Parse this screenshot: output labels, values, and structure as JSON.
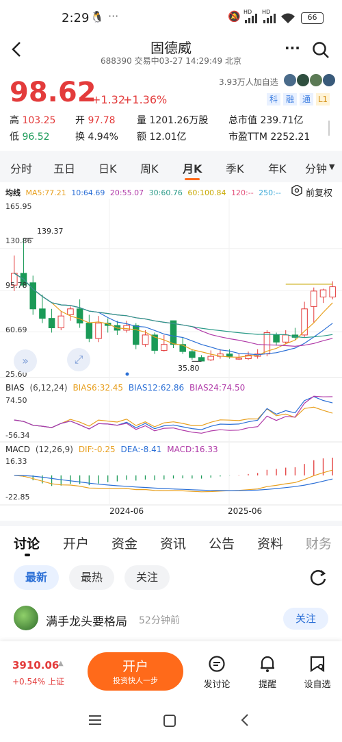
{
  "status": {
    "time": "2:29",
    "battery": "66",
    "net1": "HD",
    "net2": "HD"
  },
  "header": {
    "title": "固德威",
    "subtitle": "688390 交易中03-27 14:29:49 北京"
  },
  "quote": {
    "price": "98.62",
    "change": "+1.32",
    "pct": "+1.36%",
    "followers": "3.93万人加自选",
    "tags": [
      "科",
      "融",
      "通",
      "L1"
    ],
    "stats": [
      {
        "label": "高",
        "value": "103.25",
        "color": "red"
      },
      {
        "label": "开",
        "value": "97.78",
        "color": "red"
      },
      {
        "label": "量",
        "value": "1201.26万股",
        "color": "dark"
      },
      {
        "label": "总市值",
        "value": "239.71亿",
        "color": "dark"
      },
      {
        "label": "低",
        "value": "96.52",
        "color": "green"
      },
      {
        "label": "换",
        "value": "4.94%",
        "color": "dark"
      },
      {
        "label": "额",
        "value": "12.01亿",
        "color": "dark"
      },
      {
        "label": "市盈TTM",
        "value": "2252.21",
        "color": "dark"
      }
    ]
  },
  "chart_tabs": [
    "分时",
    "五日",
    "日K",
    "周K",
    "月K",
    "季K",
    "年K",
    "分钟"
  ],
  "chart_tab_selected": "月K",
  "ma_legend": {
    "title": "均线",
    "items": [
      "MA5:77.21",
      "10:64.69",
      "20:55.07",
      "30:60.76",
      "60:100.84",
      "120:--",
      "250:--"
    ],
    "restore": "前复权"
  },
  "chart_data": {
    "type": "candlestick",
    "timeframe": "月K",
    "y_ticks": [
      "165.95",
      "130.86",
      "95.78",
      "60.69",
      "25.60"
    ],
    "ylim": [
      25.6,
      165.95
    ],
    "x_ticks": [
      "2024-06",
      "2025-06"
    ],
    "annotations": [
      {
        "label": "139.37",
        "type": "high"
      },
      {
        "label": "35.80",
        "type": "low"
      }
    ],
    "candles": [
      {
        "o": 100,
        "c": 110,
        "h": 125,
        "l": 95
      },
      {
        "o": 110,
        "c": 100,
        "h": 139.37,
        "l": 98
      },
      {
        "o": 102,
        "c": 80,
        "h": 108,
        "l": 75
      },
      {
        "o": 80,
        "c": 72,
        "h": 92,
        "l": 68
      },
      {
        "o": 72,
        "c": 64,
        "h": 80,
        "l": 60
      },
      {
        "o": 64,
        "c": 74,
        "h": 78,
        "l": 62
      },
      {
        "o": 75,
        "c": 80,
        "h": 82,
        "l": 70
      },
      {
        "o": 80,
        "c": 68,
        "h": 88,
        "l": 64
      },
      {
        "o": 68,
        "c": 55,
        "h": 75,
        "l": 52
      },
      {
        "o": 55,
        "c": 68,
        "h": 74,
        "l": 52
      },
      {
        "o": 68,
        "c": 66,
        "h": 72,
        "l": 60
      },
      {
        "o": 66,
        "c": 62,
        "h": 70,
        "l": 58
      },
      {
        "o": 62,
        "c": 66,
        "h": 70,
        "l": 60
      },
      {
        "o": 66,
        "c": 50,
        "h": 68,
        "l": 46
      },
      {
        "o": 50,
        "c": 58,
        "h": 62,
        "l": 48
      },
      {
        "o": 58,
        "c": 45,
        "h": 60,
        "l": 42
      },
      {
        "o": 45,
        "c": 50,
        "h": 58,
        "l": 44
      },
      {
        "o": 70,
        "c": 50,
        "h": 70,
        "l": 47
      },
      {
        "o": 50,
        "c": 44,
        "h": 56,
        "l": 42
      },
      {
        "o": 44,
        "c": 39,
        "h": 46,
        "l": 37
      },
      {
        "o": 39,
        "c": 36,
        "h": 41,
        "l": 35.8
      },
      {
        "o": 37,
        "c": 40,
        "h": 45,
        "l": 36
      },
      {
        "o": 40,
        "c": 42,
        "h": 46,
        "l": 38
      },
      {
        "o": 42,
        "c": 40,
        "h": 46,
        "l": 38
      },
      {
        "o": 38,
        "c": 38.5,
        "h": 42,
        "l": 37
      },
      {
        "o": 38,
        "c": 41,
        "h": 44,
        "l": 37
      },
      {
        "o": 40,
        "c": 42,
        "h": 46,
        "l": 38
      },
      {
        "o": 42,
        "c": 60,
        "h": 62,
        "l": 40
      },
      {
        "o": 58,
        "c": 52,
        "h": 60,
        "l": 49
      },
      {
        "o": 52,
        "c": 58,
        "h": 62,
        "l": 50
      },
      {
        "o": 58,
        "c": 56,
        "h": 64,
        "l": 54
      },
      {
        "o": 58,
        "c": 80,
        "h": 86,
        "l": 56
      },
      {
        "o": 82,
        "c": 95,
        "h": 98,
        "l": 68
      },
      {
        "o": 90,
        "c": 96,
        "h": 97,
        "l": 85
      },
      {
        "o": 90,
        "c": 98.62,
        "h": 103.25,
        "l": 88
      }
    ]
  },
  "bias": {
    "label": "BIAS",
    "params": "(6,12,24)",
    "b6": "BIAS6:32.45",
    "b12": "BIAS12:62.86",
    "b24": "BIAS24:74.50",
    "top": "74.50",
    "bottom": "-56.34"
  },
  "macd": {
    "label": "MACD",
    "params": "(12,26,9)",
    "dif": "DIF:-0.25",
    "dea": "DEA:-8.41",
    "macd": "MACD:16.33",
    "top": "16.33",
    "bottom": "-22.85"
  },
  "bottom_tabs": [
    "讨论",
    "开户",
    "资金",
    "资讯",
    "公告",
    "资料",
    "财务"
  ],
  "bottom_tab_selected": "讨论",
  "filters": [
    "最新",
    "最热",
    "关注"
  ],
  "post": {
    "user": "满手龙头要格局",
    "time": "52分钟前",
    "follow": "关注"
  },
  "footer": {
    "index_value": "3910.06",
    "index_change": "+0.54% 上证",
    "open_title": "开户",
    "open_sub": "投资快人一步",
    "actions": [
      "发讨论",
      "提醒",
      "设自选"
    ]
  },
  "colors": {
    "up": "#e33b3b",
    "down": "#1a9a57",
    "accent": "#ff6a1a"
  }
}
